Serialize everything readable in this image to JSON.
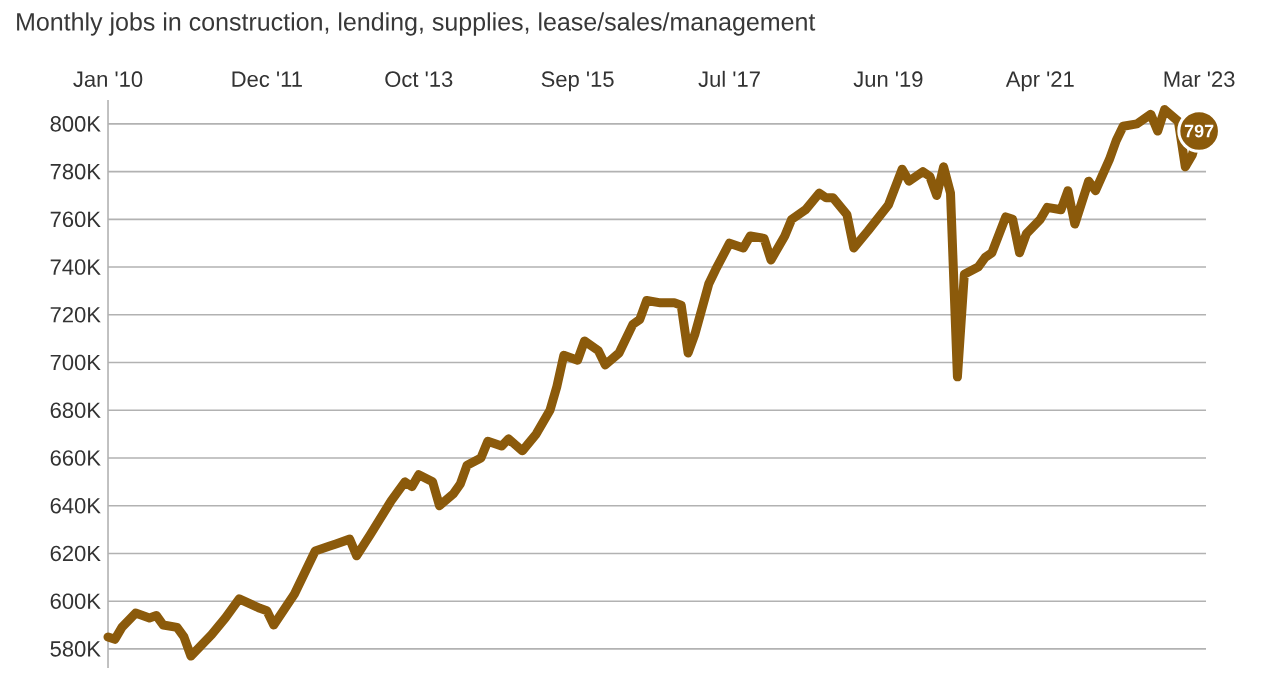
{
  "chart_data": {
    "type": "line",
    "title": "Monthly jobs in construction, lending, supplies, lease/sales/management",
    "x": [
      "2010-01",
      "2010-02",
      "2010-03",
      "2010-05",
      "2010-07",
      "2010-08",
      "2010-09",
      "2010-11",
      "2010-12",
      "2011-01",
      "2011-04",
      "2011-06",
      "2011-08",
      "2011-11",
      "2011-12",
      "2012-01",
      "2012-04",
      "2012-07",
      "2012-09",
      "2012-10",
      "2012-12",
      "2013-01",
      "2013-03",
      "2013-06",
      "2013-08",
      "2013-09",
      "2013-10",
      "2013-12",
      "2014-01",
      "2014-03",
      "2014-04",
      "2014-05",
      "2014-07",
      "2014-08",
      "2014-10",
      "2014-11",
      "2015-01",
      "2015-03",
      "2015-05",
      "2015-06",
      "2015-07",
      "2015-09",
      "2015-10",
      "2015-12",
      "2016-01",
      "2016-03",
      "2016-05",
      "2016-06",
      "2016-07",
      "2016-09",
      "2016-11",
      "2016-12",
      "2017-01",
      "2017-02",
      "2017-04",
      "2017-05",
      "2017-07",
      "2017-09",
      "2017-10",
      "2017-12",
      "2018-01",
      "2018-03",
      "2018-04",
      "2018-06",
      "2018-08",
      "2018-09",
      "2018-10",
      "2018-12",
      "2019-01",
      "2019-03",
      "2019-06",
      "2019-08",
      "2019-09",
      "2019-11",
      "2019-12",
      "2020-01",
      "2020-02",
      "2020-03",
      "2020-04",
      "2020-05",
      "2020-07",
      "2020-08",
      "2020-09",
      "2020-11",
      "2020-12",
      "2021-01",
      "2021-02",
      "2021-04",
      "2021-05",
      "2021-07",
      "2021-08",
      "2021-09",
      "2021-11",
      "2021-12",
      "2022-02",
      "2022-03",
      "2022-04",
      "2022-06",
      "2022-08",
      "2022-09",
      "2022-10",
      "2022-12",
      "2023-01",
      "2023-02",
      "2023-03"
    ],
    "series": [
      {
        "color": "#8b5a0b",
        "values": [
          585,
          584,
          589,
          595,
          593,
          594,
          590,
          589,
          585,
          577,
          586,
          593,
          601,
          597,
          596,
          590,
          603,
          621,
          623,
          624,
          626,
          619,
          628,
          642,
          650,
          648,
          653,
          650,
          640,
          645,
          649,
          657,
          660,
          667,
          665,
          668,
          663,
          670,
          680,
          690,
          703,
          701,
          709,
          705,
          699,
          704,
          716,
          718,
          726,
          725,
          725,
          724,
          704,
          712,
          733,
          739,
          750,
          748,
          753,
          752,
          743,
          753,
          760,
          764,
          771,
          769,
          769,
          762,
          748,
          755,
          766,
          781,
          776,
          780,
          778,
          770,
          782,
          771,
          694,
          737,
          740,
          744,
          746,
          761,
          760,
          746,
          754,
          760,
          765,
          764,
          772,
          758,
          776,
          772,
          785,
          793,
          799,
          800,
          804,
          797,
          806,
          801,
          782,
          787,
          797
        ]
      }
    ],
    "xlim": [
      "2010-01",
      "2023-04"
    ],
    "xticks": [
      {
        "value": "2010-01",
        "label": "Jan '10"
      },
      {
        "value": "2011-12",
        "label": "Dec '11"
      },
      {
        "value": "2013-10",
        "label": "Oct '13"
      },
      {
        "value": "2015-09",
        "label": "Sep '15"
      },
      {
        "value": "2017-07",
        "label": "Jul '17"
      },
      {
        "value": "2019-06",
        "label": "Jun '19"
      },
      {
        "value": "2021-04",
        "label": "Apr '21"
      },
      {
        "value": "2023-03",
        "label": "Mar '23"
      }
    ],
    "ylim": [
      572,
      810
    ],
    "yticks": [
      {
        "value": 580,
        "label": "580K"
      },
      {
        "value": 600,
        "label": "600K"
      },
      {
        "value": 620,
        "label": "620K"
      },
      {
        "value": 640,
        "label": "640K"
      },
      {
        "value": 660,
        "label": "660K"
      },
      {
        "value": 680,
        "label": "680K"
      },
      {
        "value": 700,
        "label": "700K"
      },
      {
        "value": 720,
        "label": "720K"
      },
      {
        "value": 740,
        "label": "740K"
      },
      {
        "value": 760,
        "label": "760K"
      },
      {
        "value": 780,
        "label": "780K"
      },
      {
        "value": 800,
        "label": "800K"
      }
    ],
    "grid": "y",
    "marker": "none",
    "line_style": "solid",
    "annotations": [
      {
        "text": "797",
        "x": "2023-03",
        "y": 797
      }
    ]
  }
}
